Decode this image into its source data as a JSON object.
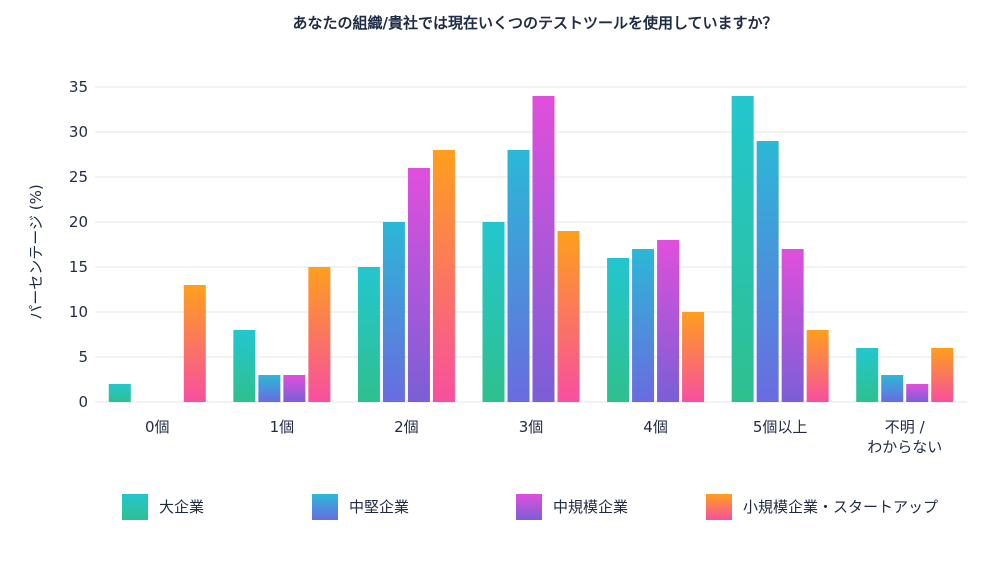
{
  "chart_data": {
    "type": "bar",
    "title": "あなたの組織/貴社では現在いくつのテストツールを使用していますか？",
    "ylabel": "パーセンテージ (%)",
    "ylim": [
      0,
      35
    ],
    "yticks": [
      0,
      5,
      10,
      15,
      20,
      25,
      30,
      35
    ],
    "grid": true,
    "legend_position": "bottom",
    "categories": [
      "0個",
      "1個",
      "2個",
      "3個",
      "4個",
      "5個以上",
      "不明 /\nわからない"
    ],
    "series": [
      {
        "name": "大企業",
        "values": [
          2,
          8,
          15,
          20,
          16,
          34,
          6
        ],
        "color_top": "#23c6cf",
        "color_bottom": "#2fc08e"
      },
      {
        "name": "中堅企業",
        "values": [
          0,
          3,
          20,
          28,
          17,
          29,
          3
        ],
        "color_top": "#2bb8d6",
        "color_bottom": "#6a6be0"
      },
      {
        "name": "中規模企業",
        "values": [
          0,
          3,
          26,
          34,
          18,
          17,
          2
        ],
        "color_top": "#e04fdc",
        "color_bottom": "#7a5fd6"
      },
      {
        "name": "小規模企業・スタートアップ",
        "values": [
          13,
          15,
          28,
          19,
          10,
          8,
          6
        ],
        "color_top": "#ff9f1c",
        "color_bottom": "#f74fa0"
      }
    ]
  }
}
